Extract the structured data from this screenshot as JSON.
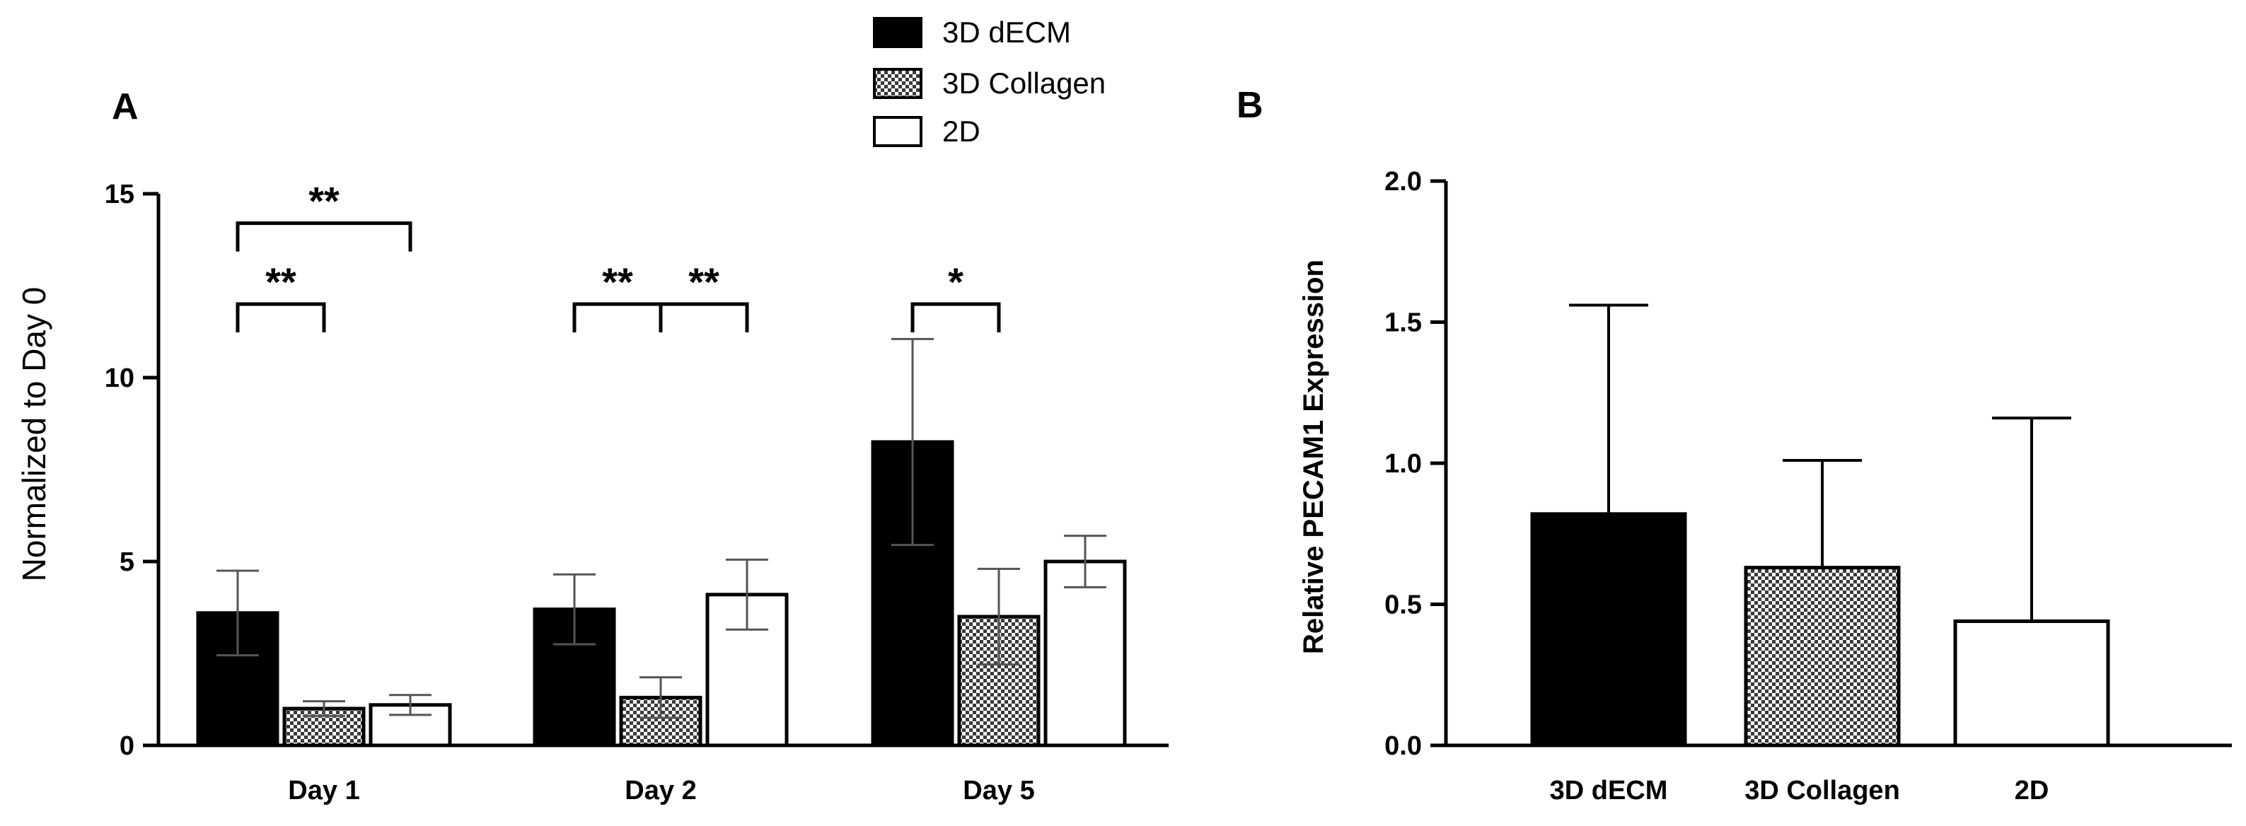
{
  "legend": {
    "items": [
      {
        "label": "3D dECM",
        "fill": "#000000"
      },
      {
        "label": "3D Collagen",
        "fill": "checker"
      },
      {
        "label": "2D",
        "fill": "#ffffff"
      }
    ]
  },
  "chart_data": [
    {
      "panel": "A",
      "type": "bar",
      "ylabel": "Normalized to Day 0",
      "ylim": [
        0,
        15
      ],
      "yticks": [
        0,
        5,
        10,
        15
      ],
      "categories": [
        "Day 1",
        "Day 2",
        "Day 5"
      ],
      "series": [
        {
          "name": "3D dECM",
          "values": [
            3.6,
            3.7,
            8.25
          ],
          "errors": [
            1.15,
            0.95,
            2.8
          ]
        },
        {
          "name": "3D Collagen",
          "values": [
            1.0,
            1.3,
            3.5
          ],
          "errors": [
            0.2,
            0.55,
            1.3
          ]
        },
        {
          "name": "2D",
          "values": [
            1.1,
            4.1,
            5.0
          ],
          "errors": [
            0.27,
            0.95,
            0.7
          ]
        }
      ],
      "significance": [
        {
          "category": 0,
          "from": 0,
          "to": 2,
          "y": 14.2,
          "label": "**"
        },
        {
          "category": 0,
          "from": 0,
          "to": 1,
          "y": 12.0,
          "label": "**"
        },
        {
          "category": 1,
          "from": 0,
          "to": 1,
          "y": 12.0,
          "label": "**"
        },
        {
          "category": 1,
          "from": 1,
          "to": 2,
          "y": 12.0,
          "label": "**"
        },
        {
          "category": 2,
          "from": 0,
          "to": 1,
          "y": 12.0,
          "label": "*"
        }
      ]
    },
    {
      "panel": "B",
      "type": "bar",
      "ylabel": "Relative PECAM1 Expression",
      "ylim": [
        0,
        2.0
      ],
      "yticks": [
        "0.0",
        "0.5",
        "1.0",
        "1.5",
        "2.0"
      ],
      "categories": [
        "3D dECM",
        "3D Collagen",
        "2D"
      ],
      "values": [
        0.82,
        0.63,
        0.44
      ],
      "errors": [
        0.74,
        0.38,
        0.72
      ],
      "fills": [
        "#000000",
        "checker",
        "#ffffff"
      ]
    }
  ]
}
